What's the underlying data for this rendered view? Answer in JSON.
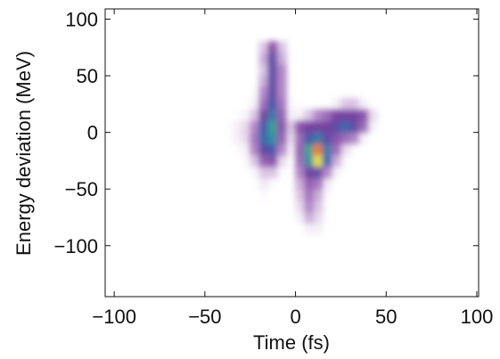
{
  "chart_data": {
    "type": "heatmap",
    "xlabel": "Time (fs)",
    "ylabel": "Energy deviation (MeV)",
    "xlim": [
      -105,
      101
    ],
    "ylim": [
      -145,
      109
    ],
    "xticks": [
      {
        "value": -100,
        "label": "−100"
      },
      {
        "value": -50,
        "label": "−50"
      },
      0,
      50,
      100
    ],
    "yticks": [
      {
        "value": -100,
        "label": "−100"
      },
      {
        "value": -50,
        "label": "−50"
      },
      0,
      50,
      100
    ],
    "xbins": [
      -35,
      -30,
      -25,
      -20,
      -15,
      -10,
      -5,
      0,
      5,
      10,
      15,
      20,
      25,
      30,
      35,
      40,
      45
    ],
    "ybins": [
      -90,
      -80,
      -70,
      -60,
      -50,
      -40,
      -30,
      -20,
      -10,
      0,
      10,
      20,
      30,
      40,
      50,
      60,
      70,
      80
    ],
    "colormap": [
      "#ffffff",
      "#b58bc9",
      "#7a3f9e",
      "#3e5fb0",
      "#2a9aa4",
      "#6cc35a",
      "#efe23c",
      "#e8452c"
    ],
    "z": [
      [
        0,
        0,
        0,
        0,
        0,
        0,
        0,
        0,
        0.05,
        0.05,
        0,
        0,
        0,
        0,
        0,
        0
      ],
      [
        0,
        0,
        0,
        0,
        0,
        0,
        0,
        0.05,
        0.12,
        0.08,
        0,
        0,
        0,
        0,
        0,
        0
      ],
      [
        0,
        0,
        0,
        0,
        0,
        0,
        0,
        0.08,
        0.15,
        0.1,
        0,
        0,
        0,
        0,
        0,
        0
      ],
      [
        0,
        0,
        0,
        0.03,
        0,
        0,
        0,
        0.1,
        0.18,
        0.12,
        0.03,
        0,
        0,
        0,
        0,
        0
      ],
      [
        0,
        0,
        0,
        0.06,
        0.03,
        0,
        0,
        0.12,
        0.22,
        0.18,
        0.06,
        0,
        0,
        0,
        0,
        0
      ],
      [
        0,
        0,
        0.04,
        0.1,
        0.1,
        0.03,
        0,
        0.15,
        0.3,
        0.35,
        0.15,
        0.05,
        0,
        0,
        0,
        0
      ],
      [
        0,
        0.03,
        0.1,
        0.22,
        0.25,
        0.08,
        0.02,
        0.2,
        0.55,
        0.85,
        0.45,
        0.12,
        0.03,
        0,
        0,
        0
      ],
      [
        0.02,
        0.05,
        0.15,
        0.35,
        0.4,
        0.15,
        0.05,
        0.22,
        0.6,
        0.95,
        0.5,
        0.2,
        0.08,
        0.03,
        0,
        0
      ],
      [
        0.05,
        0.08,
        0.18,
        0.45,
        0.55,
        0.22,
        0.08,
        0.2,
        0.4,
        0.5,
        0.35,
        0.25,
        0.2,
        0.15,
        0.05,
        0
      ],
      [
        0.05,
        0.08,
        0.15,
        0.4,
        0.6,
        0.25,
        0.1,
        0.25,
        0.3,
        0.3,
        0.3,
        0.35,
        0.45,
        0.35,
        0.2,
        0.05
      ],
      [
        0.02,
        0.04,
        0.1,
        0.3,
        0.5,
        0.22,
        0.05,
        0.05,
        0.1,
        0.15,
        0.2,
        0.28,
        0.3,
        0.3,
        0.25,
        0.08
      ],
      [
        0,
        0,
        0.05,
        0.2,
        0.4,
        0.18,
        0.03,
        0,
        0,
        0,
        0,
        0.05,
        0.1,
        0.1,
        0.05,
        0
      ],
      [
        0,
        0,
        0.03,
        0.15,
        0.35,
        0.15,
        0,
        0,
        0,
        0,
        0,
        0,
        0,
        0,
        0,
        0
      ],
      [
        0,
        0,
        0,
        0.12,
        0.35,
        0.15,
        0,
        0,
        0,
        0,
        0,
        0,
        0,
        0,
        0,
        0
      ],
      [
        0,
        0,
        0,
        0.1,
        0.35,
        0.15,
        0,
        0,
        0,
        0,
        0,
        0,
        0,
        0,
        0,
        0
      ],
      [
        0,
        0,
        0,
        0.12,
        0.35,
        0.12,
        0,
        0,
        0,
        0,
        0,
        0,
        0,
        0,
        0,
        0
      ],
      [
        0,
        0,
        0,
        0.1,
        0.25,
        0.1,
        0,
        0,
        0,
        0,
        0,
        0,
        0,
        0,
        0,
        0
      ]
    ]
  }
}
